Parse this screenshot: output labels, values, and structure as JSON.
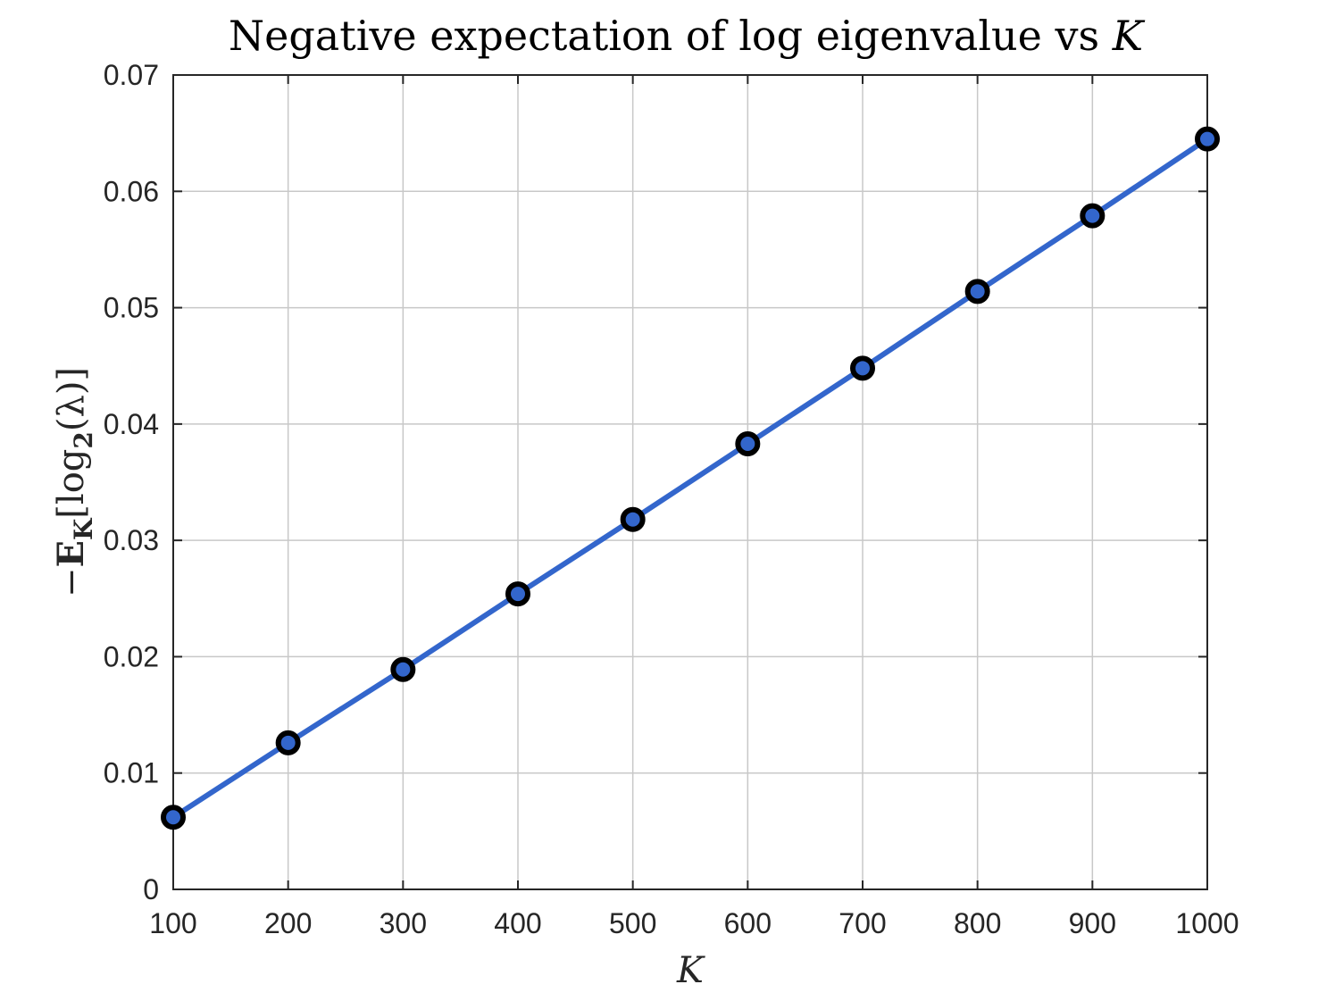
{
  "chart_data": {
    "type": "line",
    "title_text": "Negative expectation of log eigenvalue vs ",
    "title_var": "K",
    "xlabel": "K",
    "ylabel_parts": {
      "minus": "−",
      "E": "E",
      "sub_K": "K",
      "bracket_open": "[log",
      "sub_2": "2",
      "rest": "(λ)]"
    },
    "xlim": [
      100,
      1000
    ],
    "ylim": [
      0,
      0.07
    ],
    "xticks": [
      "100",
      "200",
      "300",
      "400",
      "500",
      "600",
      "700",
      "800",
      "900",
      "1000"
    ],
    "yticks": [
      "0",
      "0.01",
      "0.02",
      "0.03",
      "0.04",
      "0.05",
      "0.06",
      "0.07"
    ],
    "grid": true,
    "line_color": "#3366cc",
    "marker_edge_color": "#000000",
    "series": [
      {
        "x": [
          100,
          200,
          300,
          400,
          500,
          600,
          700,
          800,
          900,
          1000
        ],
        "values": [
          0.0062,
          0.0126,
          0.0189,
          0.0254,
          0.0318,
          0.0383,
          0.0448,
          0.0514,
          0.0579,
          0.0645
        ]
      }
    ]
  }
}
